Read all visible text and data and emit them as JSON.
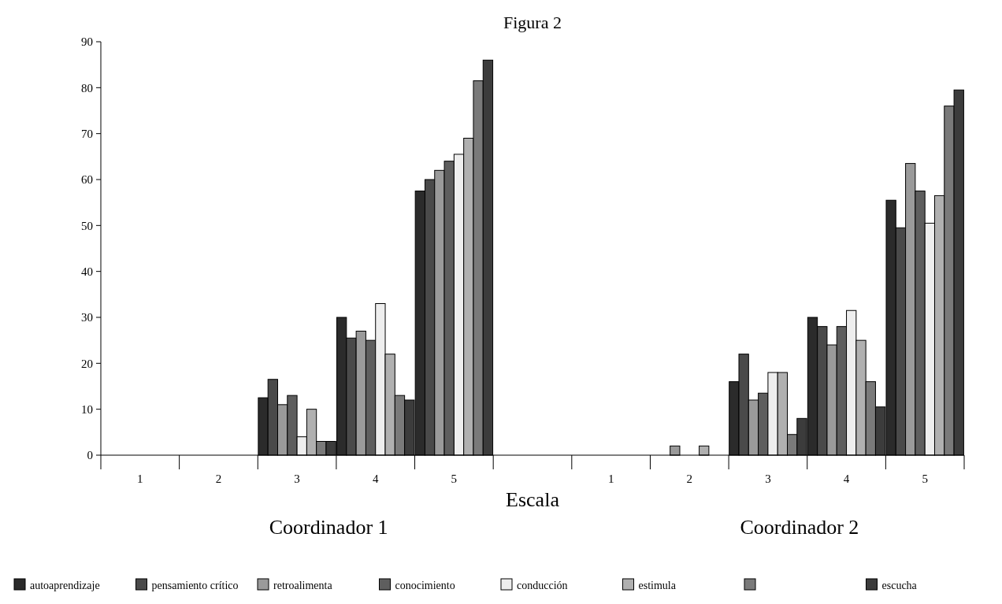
{
  "chart_data": {
    "type": "bar",
    "title": "Figura 2",
    "xlabel": "Escala",
    "annotations": [
      "Coordinador 1",
      "Coordinador 2"
    ],
    "categories": [
      "1",
      "2",
      "3",
      "4",
      "5",
      null,
      "1",
      "2",
      "3",
      "4",
      "5"
    ],
    "series": [
      {
        "name": "autoaprendizaje",
        "color": "#2b2b2b",
        "values": [
          0,
          0,
          12.5,
          30,
          57.5,
          null,
          0,
          0,
          16,
          30,
          55.5
        ]
      },
      {
        "name": "pensamiento crítico",
        "color": "#4a4a4a",
        "values": [
          0,
          0,
          16.5,
          25.5,
          60,
          null,
          0,
          0,
          22,
          28,
          49.5
        ]
      },
      {
        "name": "retroalimenta",
        "color": "#9a9a9a",
        "values": [
          0,
          0,
          11,
          27,
          62,
          null,
          0,
          2,
          12,
          24,
          63.5
        ]
      },
      {
        "name": "conocimiento",
        "color": "#5e5e5e",
        "values": [
          0,
          0,
          13,
          25,
          64,
          null,
          0,
          0,
          13.5,
          28,
          57.5
        ]
      },
      {
        "name": "conducción",
        "color": "#eeeeee",
        "values": [
          0,
          0,
          4,
          33,
          65.5,
          null,
          0,
          0,
          18,
          31.5,
          50.5
        ]
      },
      {
        "name": "estimula",
        "color": "#b0b0b0",
        "values": [
          0,
          0,
          10,
          22,
          69,
          null,
          0,
          2,
          18,
          25,
          56.5
        ]
      },
      {
        "color": "#7a7a7a",
        "values": [
          0,
          0,
          3,
          13,
          81.5,
          null,
          0,
          0,
          4.5,
          16,
          76
        ]
      },
      {
        "name": "escucha",
        "color": "#3c3c3c",
        "values": [
          0,
          0,
          3,
          12,
          86,
          null,
          0,
          0,
          8,
          10.5,
          79.5
        ]
      }
    ],
    "ylim": [
      0,
      90
    ],
    "yticks": [
      0,
      10,
      20,
      30,
      40,
      50,
      60,
      70,
      80,
      90
    ],
    "legend": "bottom"
  }
}
